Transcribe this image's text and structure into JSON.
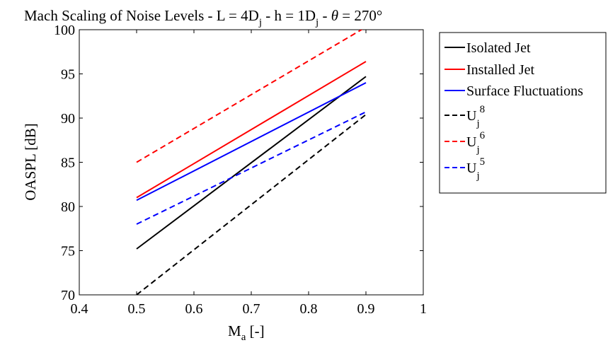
{
  "chart_data": {
    "type": "line",
    "title": "Mach Scaling of Noise Levels - L = 4D",
    "title_parts": {
      "lead": "Mach Scaling of Noise Levels - L = 4D",
      "sub_j": "j",
      "mid": " - h = 1D",
      "sub_j2": "j",
      "theta_sym": "θ",
      "tail": " = 270°"
    },
    "xlabel": {
      "base": "M",
      "sub": "a",
      "unit": " [-]"
    },
    "ylabel": "OASPL [dB]",
    "xlim": [
      0.4,
      1.0
    ],
    "ylim": [
      70,
      100
    ],
    "x_ticks": [
      0.4,
      0.5,
      0.6,
      0.7,
      0.8,
      0.9,
      1.0
    ],
    "x_tick_labels": [
      "0.4",
      "0.5",
      "0.6",
      "0.7",
      "0.8",
      "0.9",
      "1"
    ],
    "y_ticks": [
      70,
      75,
      80,
      85,
      90,
      95,
      100
    ],
    "y_tick_labels": [
      "70",
      "75",
      "80",
      "85",
      "90",
      "95",
      "100"
    ],
    "grid": false,
    "legend_position": "outside-right",
    "series": [
      {
        "name": "Isolated Jet",
        "x": [
          0.5,
          0.9
        ],
        "y": [
          75.2,
          94.7
        ],
        "color": "#000000",
        "dash": "solid"
      },
      {
        "name": "Installed Jet",
        "x": [
          0.5,
          0.9
        ],
        "y": [
          81.0,
          96.4
        ],
        "color": "#ff0000",
        "dash": "solid"
      },
      {
        "name": "Surface Fluctuations",
        "x": [
          0.5,
          0.9
        ],
        "y": [
          80.7,
          94.0
        ],
        "color": "#0000ff",
        "dash": "solid"
      },
      {
        "name": "U_j^8",
        "label_base": "U",
        "label_sub": "j",
        "label_sup": "8",
        "x": [
          0.5,
          0.9
        ],
        "y": [
          70.0,
          90.4
        ],
        "color": "#000000",
        "dash": "dashed"
      },
      {
        "name": "U_j^6",
        "label_base": "U",
        "label_sub": "j",
        "label_sup": "6",
        "x": [
          0.5,
          0.9
        ],
        "y": [
          85.0,
          100.3
        ],
        "color": "#ff0000",
        "dash": "dashed"
      },
      {
        "name": "U_j^5",
        "label_base": "U",
        "label_sub": "j",
        "label_sup": "5",
        "x": [
          0.5,
          0.9
        ],
        "y": [
          78.0,
          90.7
        ],
        "color": "#0000ff",
        "dash": "dashed"
      }
    ]
  }
}
